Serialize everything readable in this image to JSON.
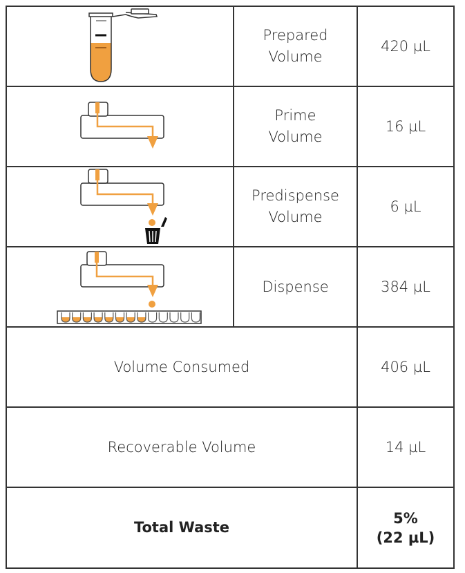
{
  "rows": [
    {
      "step": "Prepared Volume",
      "step_lines": [
        "Prepared",
        "Volume"
      ],
      "value": "420 µL",
      "icon": "microcentrifuge-tube-icon"
    },
    {
      "step": "Prime Volume",
      "step_lines": [
        "Prime",
        "Volume"
      ],
      "value": "16 µL",
      "icon": "prime-cassette-icon"
    },
    {
      "step": "Predispense Volume",
      "step_lines": [
        "Predispense",
        "Volume"
      ],
      "value": "6 µL",
      "icon": "predispense-waste-icon"
    },
    {
      "step": "Dispense",
      "step_lines": [
        "Dispense"
      ],
      "value": "384 µL",
      "icon": "dispense-plate-icon"
    }
  ],
  "summary": [
    {
      "label": "Volume Consumed",
      "value": "406 µL"
    },
    {
      "label": "Recoverable Volume",
      "value": "14 µL"
    }
  ],
  "total": {
    "label": "Total Waste",
    "value_line1": "5%",
    "value_line2": "(22 µL)"
  },
  "colors": {
    "liquid": "#F0A040",
    "border": "#333333"
  }
}
